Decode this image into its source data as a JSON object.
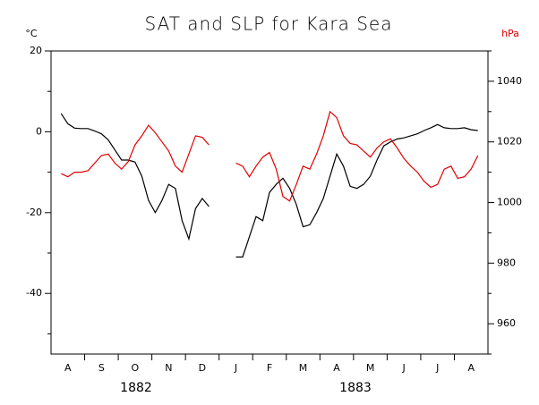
{
  "chart_data": {
    "type": "line",
    "title": "SAT and SLP for Kara Sea",
    "ylabel": "°C",
    "y2label": "hPa",
    "years": [
      "1882",
      "1883"
    ],
    "categories": [
      null,
      null,
      "A",
      null,
      null,
      null,
      null,
      "S",
      null,
      null,
      null,
      null,
      "O",
      null,
      null,
      null,
      null,
      "N",
      null,
      null,
      null,
      null,
      "D",
      null,
      null,
      null,
      null,
      "J",
      null,
      null,
      null,
      null,
      "F",
      null,
      null,
      null,
      null,
      "M",
      null,
      null,
      null,
      null,
      "A",
      null,
      null,
      null,
      null,
      "M",
      null,
      null,
      null,
      null,
      "J",
      null,
      null,
      null,
      null,
      "J",
      null,
      null,
      null,
      null,
      "A",
      null,
      null
    ],
    "ylim": [
      -55,
      20
    ],
    "yticks": [
      -40,
      -20,
      0,
      20
    ],
    "yminorticks": [
      -50,
      -30,
      -10,
      10
    ],
    "y2lim": [
      950,
      1050
    ],
    "y2ticks": [
      960,
      980,
      1000,
      1020,
      1040
    ],
    "y2minorticks": [
      950,
      970,
      990,
      1010,
      1030,
      1050
    ],
    "series": [
      {
        "name": "SAT",
        "color": "#000000",
        "axis": "y",
        "values": [
          null,
          4.5,
          2,
          0.9,
          0.8,
          0.8,
          0.2,
          -0.5,
          -2,
          -4.5,
          -7,
          -7,
          -7.5,
          -11,
          -17,
          -20,
          -17,
          -13,
          -14,
          -22,
          -26.5,
          -19,
          -16.5,
          -18.5,
          null,
          null,
          null,
          -31,
          -31,
          -26,
          -21,
          -22,
          -15,
          -13,
          -11.5,
          -14,
          -18,
          -23.5,
          -23,
          -20,
          -16.5,
          -11,
          -5.5,
          -8.5,
          -13.5,
          -14,
          -13,
          -11,
          -7,
          -3.5,
          -2.5,
          -1.8,
          -1.5,
          -1,
          -0.5,
          0.3,
          1,
          1.8,
          1,
          0.8,
          0.8,
          1,
          0.5,
          0.3,
          null
        ]
      },
      {
        "name": "SLP",
        "color": "#e00000",
        "axis": "y2",
        "values": [
          null,
          1009.5,
          1008.5,
          1010,
          1010,
          1010.5,
          1013,
          1015.5,
          1016,
          1013,
          1011,
          1013.5,
          1019,
          1022,
          1025.5,
          1023,
          1020,
          1017,
          1012,
          1010,
          1016,
          1022,
          1021.5,
          1019,
          null,
          null,
          null,
          1013,
          1012,
          1008.5,
          1012,
          1015,
          1016.5,
          1011,
          1002,
          1000.5,
          1006,
          1012,
          1011,
          1016,
          1022,
          1030,
          1028,
          1022,
          1019.5,
          1019,
          1017,
          1015,
          1018,
          1020,
          1021,
          1018,
          1014.5,
          1012,
          1010,
          1007,
          1005,
          1006,
          1011,
          1012,
          1008,
          1008.5,
          1011,
          1015.5,
          null
        ]
      }
    ]
  }
}
